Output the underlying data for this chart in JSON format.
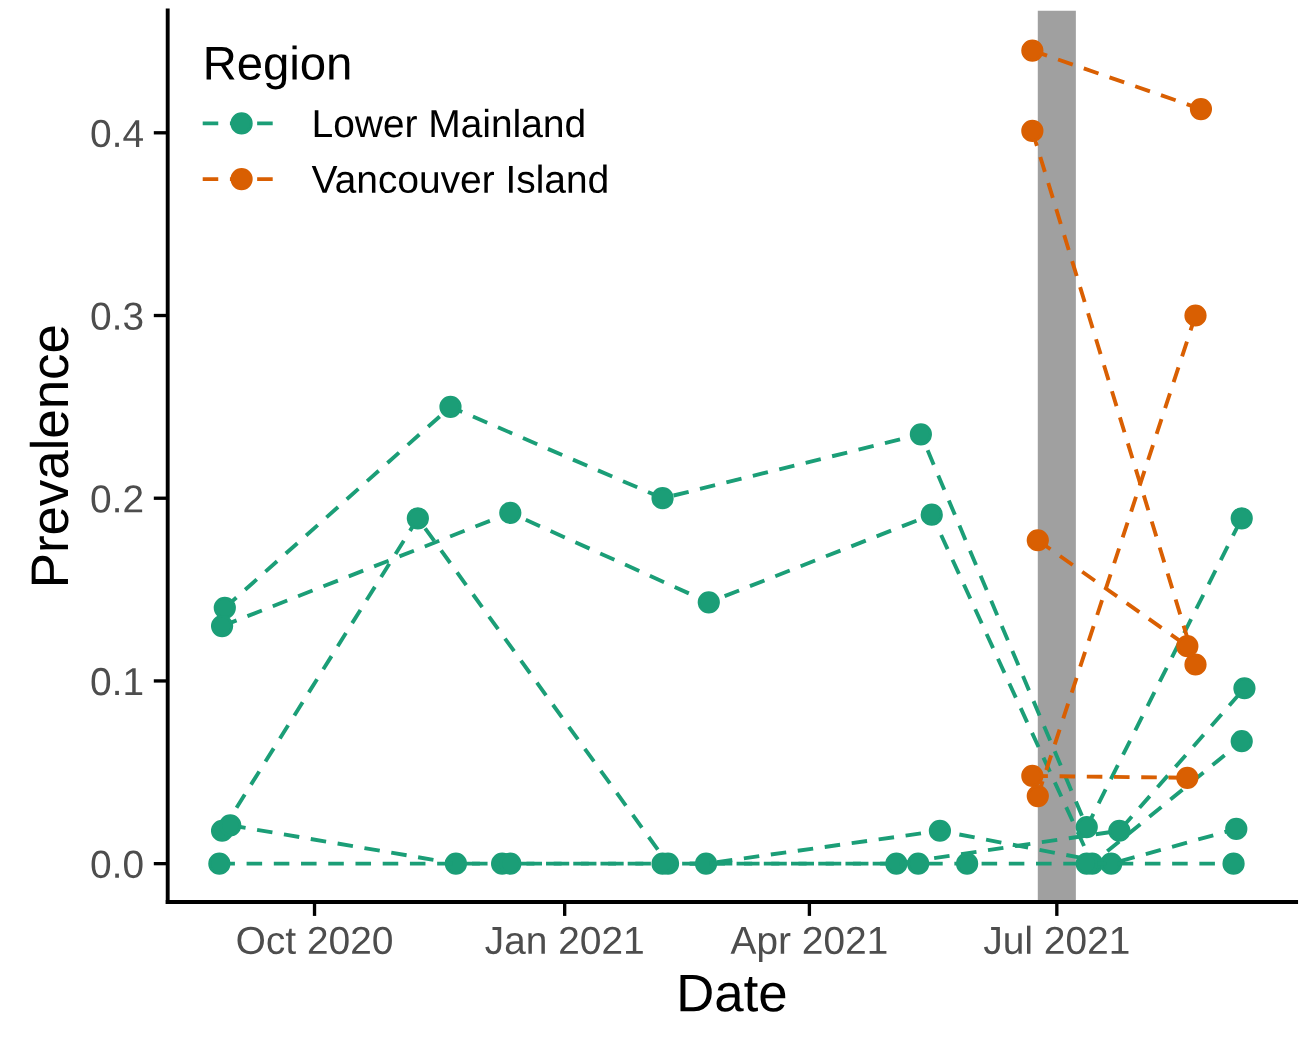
{
  "chart_data": {
    "type": "line",
    "xlabel": "Date",
    "ylabel": "Prevalence",
    "legend_title": "Region",
    "legend": "top left",
    "marker": "circle",
    "line_style": "dashed",
    "grid": false,
    "xlim": [
      "2020-08-08",
      "2021-09-27"
    ],
    "xticks": [
      {
        "value": "2020-10-01",
        "label": "Oct 2020"
      },
      {
        "value": "2021-01-01",
        "label": "Jan 2021"
      },
      {
        "value": "2021-04-01",
        "label": "Apr 2021"
      },
      {
        "value": "2021-07-01",
        "label": "Jul 2021"
      }
    ],
    "ylim": [
      -0.021,
      0.467
    ],
    "yticks": [
      {
        "value": 0,
        "label": "0.0"
      },
      {
        "value": 0.1,
        "label": "0.1"
      },
      {
        "value": 0.2,
        "label": "0.2"
      },
      {
        "value": 0.3,
        "label": "0.3"
      },
      {
        "value": 0.4,
        "label": "0.4"
      }
    ],
    "bands": [
      {
        "axis": "x",
        "from": "2021-06-24",
        "to": "2021-07-08",
        "color": "#a0a0a0"
      }
    ],
    "series": [
      {
        "name": "Lower Mainland",
        "color": "#1b9e77",
        "x": [
          "2020-08-29",
          "2020-11-20",
          "2021-02-06",
          "2021-05-12",
          "2021-07-12",
          "2021-09-07"
        ],
        "values": [
          0.14,
          0.25,
          0.2,
          0.235,
          0.02,
          0.189
        ]
      },
      {
        "color": "#1b9e77",
        "x": [
          "2020-08-28",
          "2020-12-12",
          "2021-02-23",
          "2021-05-16",
          "2021-07-14",
          "2021-09-07"
        ],
        "values": [
          0.13,
          0.192,
          0.143,
          0.191,
          0,
          0.067
        ]
      },
      {
        "color": "#1b9e77",
        "x": [
          "2020-08-28",
          "2020-11-08",
          "2021-02-08",
          "2021-05-03",
          "2021-07-24",
          "2021-09-08"
        ],
        "values": [
          0.018,
          0.189,
          0,
          0,
          0.018,
          0.096
        ]
      },
      {
        "color": "#1b9e77",
        "x": [
          "2020-08-31",
          "2020-11-22",
          "2020-12-09",
          "2021-02-22",
          "2021-05-19",
          "2021-07-21",
          "2021-09-05"
        ],
        "values": [
          0.021,
          0,
          0,
          0,
          0.018,
          0,
          0.019
        ]
      },
      {
        "color": "#1b9e77",
        "x": [
          "2020-08-27",
          "2020-12-12",
          "2021-02-06",
          "2021-05-11",
          "2021-05-29",
          "2021-07-12",
          "2021-09-04"
        ],
        "values": [
          0,
          0,
          0,
          0,
          0,
          0,
          0
        ]
      },
      {
        "name": "Vancouver Island",
        "color": "#d95f02",
        "x": [
          "2021-06-22",
          "2021-08-23"
        ],
        "values": [
          0.445,
          0.413
        ]
      },
      {
        "color": "#d95f02",
        "x": [
          "2021-06-22",
          "2021-08-21"
        ],
        "values": [
          0.401,
          0.109
        ]
      },
      {
        "color": "#d95f02",
        "x": [
          "2021-06-24",
          "2021-08-18"
        ],
        "values": [
          0.177,
          0.119
        ]
      },
      {
        "color": "#d95f02",
        "x": [
          "2021-06-22",
          "2021-08-18"
        ],
        "values": [
          0.048,
          0.047
        ]
      },
      {
        "color": "#d95f02",
        "x": [
          "2021-06-24",
          "2021-08-21"
        ],
        "values": [
          0.037,
          0.3
        ]
      }
    ]
  }
}
